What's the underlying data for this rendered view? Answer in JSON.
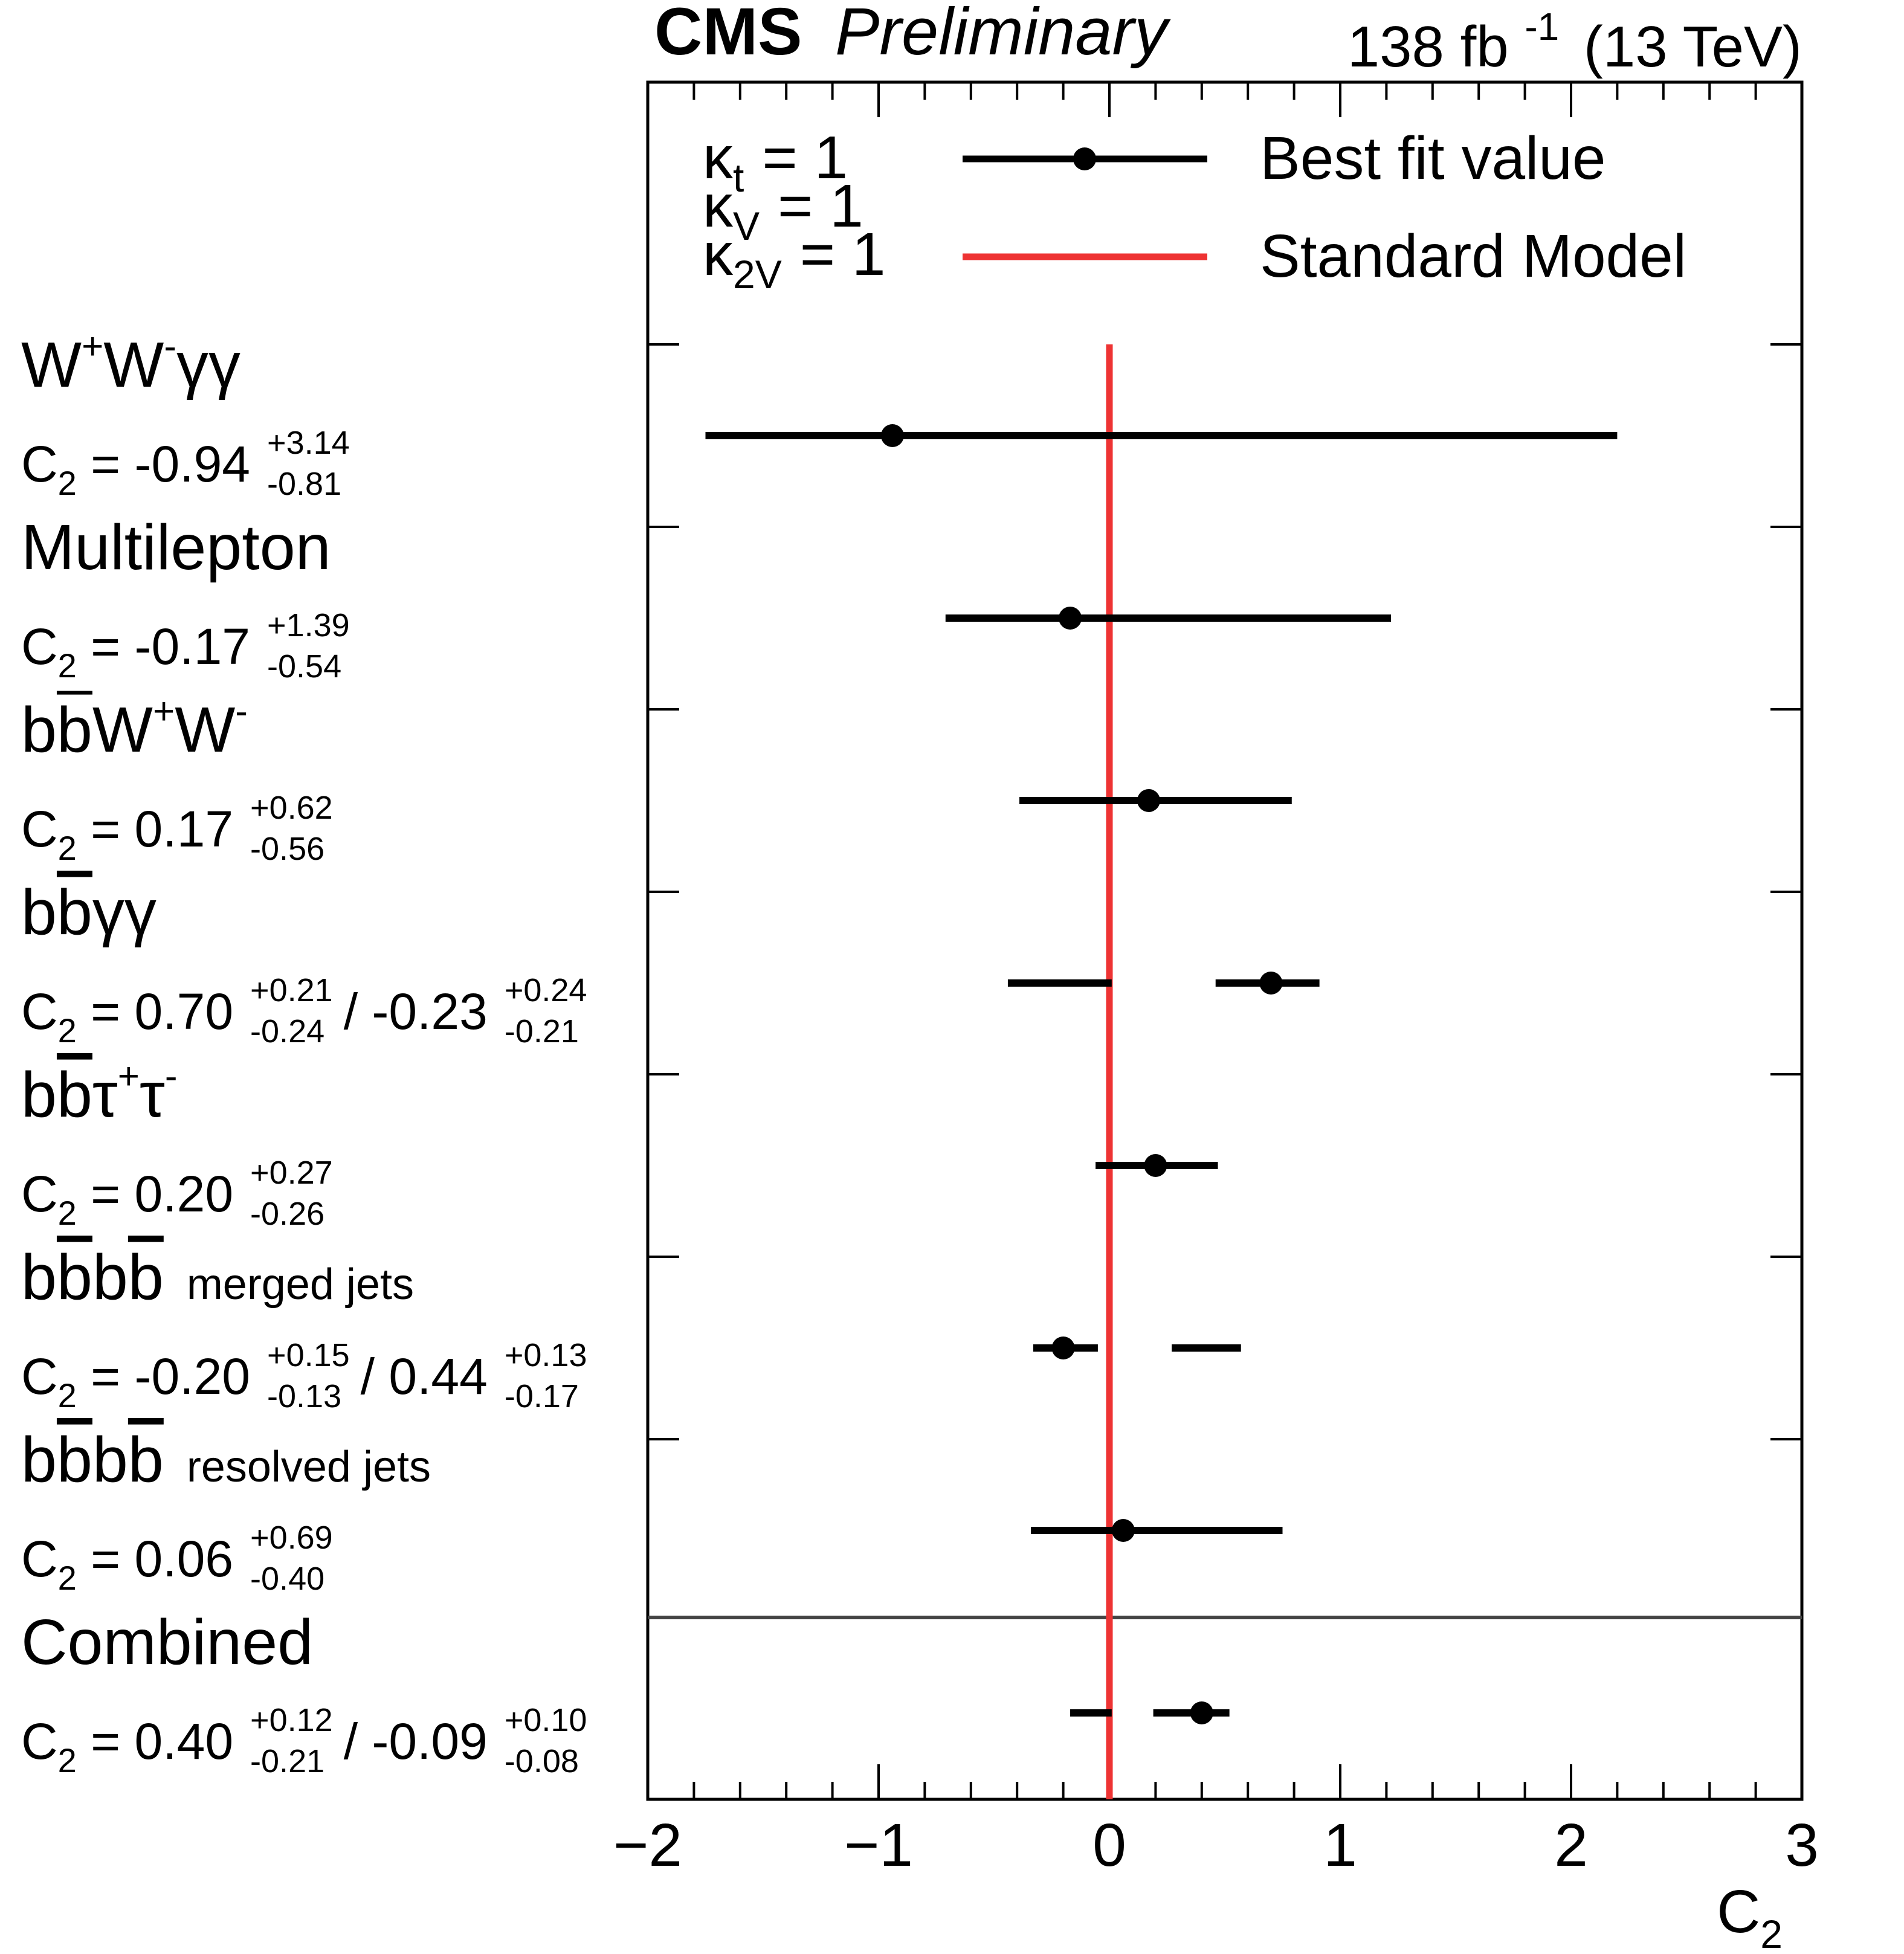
{
  "header": {
    "experiment": "CMS",
    "status": "Preliminary",
    "lumi_value": "138 fb",
    "lumi_exp": "-1",
    "energy": "(13 TeV)"
  },
  "legend": {
    "kappa_t": {
      "symbol": "κ",
      "sub": "t",
      "value": "= 1"
    },
    "kappa_V": {
      "symbol": "κ",
      "sub": "V",
      "value": "= 1"
    },
    "kappa_2V": {
      "symbol": "κ",
      "sub": "2V",
      "value": "= 1"
    },
    "best_fit_label": "Best fit value",
    "sm_label": "Standard Model"
  },
  "colors": {
    "best_fit": "#000000",
    "standard_model": "#ee3333",
    "separator": "#444444"
  },
  "chart_data": {
    "type": "scatter",
    "xlabel": "C",
    "xlabel_sub": "2",
    "xlim": [
      -2,
      3
    ],
    "xticks": [
      "−2",
      "−1",
      "0",
      "1",
      "2",
      "3"
    ],
    "xtick_values": [
      -2,
      -1,
      0,
      1,
      2,
      3
    ],
    "standard_model": 0,
    "categories": [
      {
        "name_parts": [
          [
            "W",
            ""
          ],
          [
            "+",
            "sup"
          ],
          [
            "W",
            ""
          ],
          [
            "-",
            "sup"
          ],
          [
            "γγ",
            ""
          ]
        ],
        "tag": "",
        "result": {
          "prefix": "C",
          "sub": "2",
          "eq": "= -0.94",
          "up": "+3.14",
          "dn": "-0.81"
        },
        "result2": null,
        "best_fit": -0.94,
        "intervals": [
          [
            -1.75,
            2.2
          ]
        ]
      },
      {
        "name_parts": [
          [
            "Multilepton",
            ""
          ]
        ],
        "tag": "",
        "result": {
          "prefix": "C",
          "sub": "2",
          "eq": "= -0.17",
          "up": "+1.39",
          "dn": "-0.54"
        },
        "result2": null,
        "best_fit": -0.17,
        "intervals": [
          [
            -0.71,
            1.22
          ]
        ]
      },
      {
        "name_parts": [
          [
            "b",
            ""
          ],
          [
            "b",
            "bar"
          ],
          [
            "W",
            ""
          ],
          [
            "+",
            "sup"
          ],
          [
            "W",
            ""
          ],
          [
            "-",
            "sup"
          ]
        ],
        "tag": "",
        "result": {
          "prefix": "C",
          "sub": "2",
          "eq": "= 0.17",
          "up": "+0.62",
          "dn": "-0.56"
        },
        "result2": null,
        "best_fit": 0.17,
        "intervals": [
          [
            -0.39,
            0.79
          ]
        ]
      },
      {
        "name_parts": [
          [
            "b",
            ""
          ],
          [
            "b",
            "bar"
          ],
          [
            "γγ",
            ""
          ]
        ],
        "tag": "",
        "result": {
          "prefix": "C",
          "sub": "2",
          "eq": "= 0.70",
          "up": "+0.21",
          "dn": "-0.24"
        },
        "result2": {
          "eq": "/ -0.23",
          "up": "+0.24",
          "dn": "-0.21"
        },
        "best_fit": 0.7,
        "intervals": [
          [
            -0.44,
            0.01
          ],
          [
            0.46,
            0.91
          ]
        ]
      },
      {
        "name_parts": [
          [
            "b",
            ""
          ],
          [
            "b",
            "bar"
          ],
          [
            "τ",
            ""
          ],
          [
            "+",
            "sup"
          ],
          [
            "τ",
            ""
          ],
          [
            "-",
            "sup"
          ]
        ],
        "tag": "",
        "result": {
          "prefix": "C",
          "sub": "2",
          "eq": "= 0.20",
          "up": "+0.27",
          "dn": "-0.26"
        },
        "result2": null,
        "best_fit": 0.2,
        "intervals": [
          [
            -0.06,
            0.47
          ]
        ]
      },
      {
        "name_parts": [
          [
            "b",
            ""
          ],
          [
            "b",
            "bar"
          ],
          [
            "b",
            ""
          ],
          [
            "b",
            "bar"
          ]
        ],
        "tag": "merged jets",
        "result": {
          "prefix": "C",
          "sub": "2",
          "eq": "= -0.20",
          "up": "+0.15",
          "dn": "-0.13"
        },
        "result2": {
          "eq": "/ 0.44",
          "up": "+0.13",
          "dn": "-0.17"
        },
        "best_fit": -0.2,
        "intervals": [
          [
            -0.33,
            -0.05
          ],
          [
            0.27,
            0.57
          ]
        ]
      },
      {
        "name_parts": [
          [
            "b",
            ""
          ],
          [
            "b",
            "bar"
          ],
          [
            "b",
            ""
          ],
          [
            "b",
            "bar"
          ]
        ],
        "tag": "resolved jets",
        "result": {
          "prefix": "C",
          "sub": "2",
          "eq": "= 0.06",
          "up": "+0.69",
          "dn": "-0.40"
        },
        "result2": null,
        "best_fit": 0.06,
        "intervals": [
          [
            -0.34,
            0.75
          ]
        ]
      },
      {
        "name_parts": [
          [
            "Combined",
            ""
          ]
        ],
        "tag": "",
        "result": {
          "prefix": "C",
          "sub": "2",
          "eq": "= 0.40",
          "up": "+0.12",
          "dn": "-0.21"
        },
        "result2": {
          "eq": "/ -0.09",
          "up": "+0.10",
          "dn": "-0.08"
        },
        "best_fit": 0.4,
        "intervals": [
          [
            -0.17,
            0.01
          ],
          [
            0.19,
            0.52
          ]
        ]
      }
    ]
  }
}
